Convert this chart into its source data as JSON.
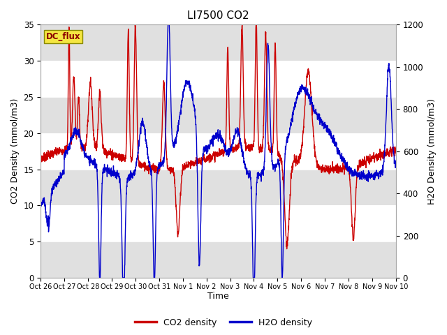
{
  "title": "LI7500 CO2",
  "xlabel": "Time",
  "ylabel_left": "CO2 Density (mmol/m3)",
  "ylabel_right": "H2O Density (mmol/m3)",
  "co2_color": "#cc0000",
  "h2o_color": "#0000cc",
  "ylim_left": [
    0,
    35
  ],
  "ylim_right": [
    0,
    1200
  ],
  "xtick_labels": [
    "Oct 26",
    "Oct 27",
    "Oct 28",
    "Oct 29",
    "Oct 30",
    "Oct 31",
    "Nov 1",
    "Nov 2",
    "Nov 3",
    "Nov 4",
    "Nov 5",
    "Nov 6",
    "Nov 7",
    "Nov 8",
    "Nov 9",
    "Nov 10"
  ],
  "legend_entries": [
    "CO2 density",
    "H2O density"
  ],
  "dc_flux_label": "DC_flux",
  "background_color": "#ffffff",
  "grid_band_color": "#e0e0e0",
  "line_width": 1.0,
  "n_days": 15,
  "n_per_day": 150
}
